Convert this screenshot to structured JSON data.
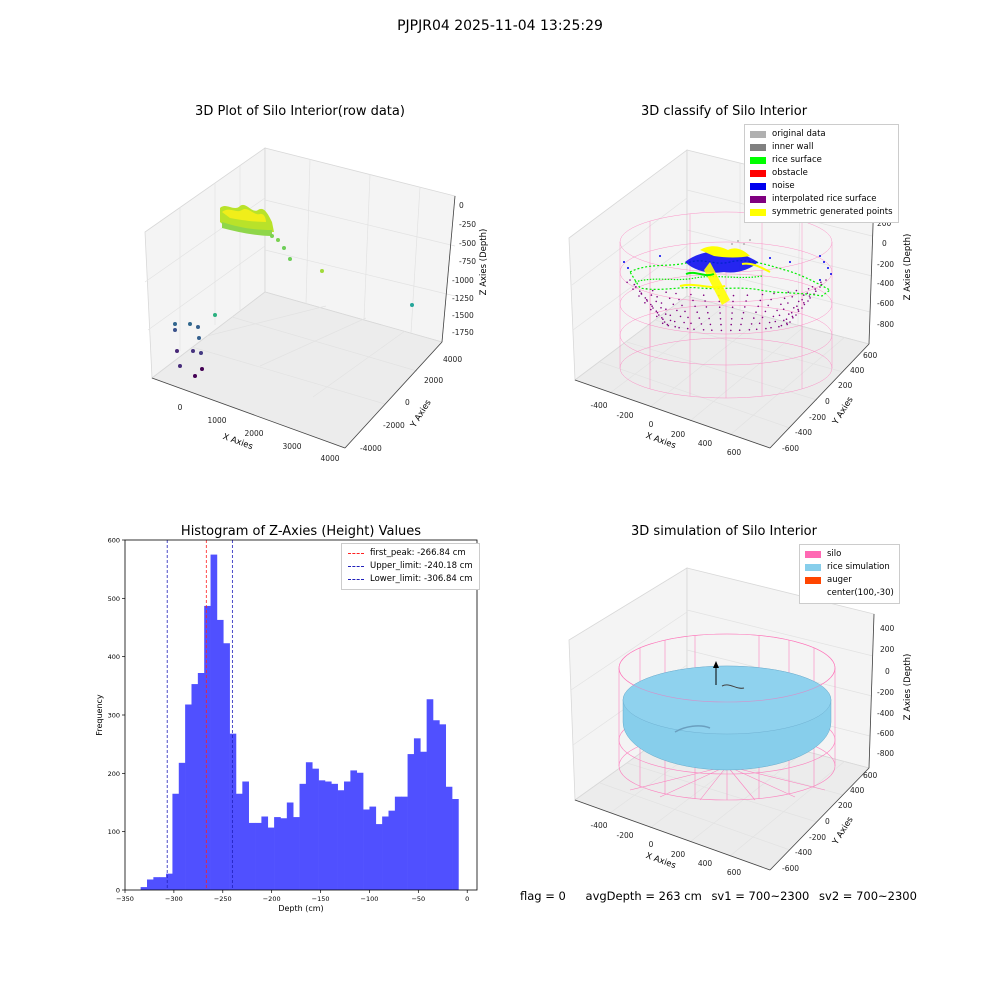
{
  "suptitle": "PJPJR04 2025-11-04 13:25:29",
  "colors": {
    "hist_bar": "#5050ff",
    "first_peak": "#ff2020",
    "limits": "#2020bb",
    "silo": "#ff69b4",
    "rice_simulation": "#87ceeb",
    "auger": "#ff4500"
  },
  "plot1": {
    "title": "3D Plot of Silo Interior(row data)",
    "xlabel": "X Axies",
    "ylabel": "Y Axies",
    "zlabel": "Z Axies (Depth)",
    "x_ticks": [
      "0",
      "1000",
      "2000",
      "3000",
      "4000"
    ],
    "y_ticks": [
      "-4000",
      "-2000",
      "0",
      "2000",
      "4000"
    ],
    "z_ticks": [
      "0",
      "-250",
      "-500",
      "-750",
      "-1000",
      "-1250",
      "-1500",
      "-1750"
    ]
  },
  "plot2": {
    "title": "3D classify of Silo Interior",
    "xlabel": "X Axies",
    "ylabel": "Y Axies",
    "zlabel": "Z Axies (Depth)",
    "x_ticks": [
      "-400",
      "-200",
      "0",
      "200",
      "400",
      "600"
    ],
    "y_ticks": [
      "-600",
      "-400",
      "-200",
      "0",
      "200",
      "400",
      "600"
    ],
    "z_ticks": [
      "200",
      "0",
      "-200",
      "-400",
      "-600",
      "-800"
    ],
    "legend": [
      {
        "label": "original data",
        "color": "#b0b0b0"
      },
      {
        "label": "inner wall",
        "color": "#808080"
      },
      {
        "label": "rice surface",
        "color": "#00ff00"
      },
      {
        "label": "obstacle",
        "color": "#ff0000"
      },
      {
        "label": "noise",
        "color": "#0000ee"
      },
      {
        "label": "interpolated rice surface",
        "color": "#800080"
      },
      {
        "label": "symmetric generated points",
        "color": "#ffff00"
      }
    ]
  },
  "plot3": {
    "title": "Histogram of Z-Axies (Height) Values",
    "xlabel": "Depth (cm)",
    "ylabel": "Frequency",
    "legend": [
      {
        "label": "first_peak: -266.84 cm",
        "color": "#ff2020"
      },
      {
        "label": "Upper_limit: -240.18 cm",
        "color": "#2020bb"
      },
      {
        "label": "Lower_limit: -306.84 cm",
        "color": "#2020bb"
      }
    ]
  },
  "plot4": {
    "title": "3D simulation of Silo Interior",
    "xlabel": "X Axies",
    "ylabel": "Y Axies",
    "zlabel": "Z Axies (Depth)",
    "x_ticks": [
      "-400",
      "-200",
      "0",
      "200",
      "400",
      "600"
    ],
    "y_ticks": [
      "-600",
      "-400",
      "-200",
      "0",
      "200",
      "400",
      "600"
    ],
    "z_ticks": [
      "400",
      "200",
      "0",
      "-200",
      "-400",
      "-600",
      "-800"
    ],
    "legend": [
      {
        "label": "silo",
        "color": "#ff69b4"
      },
      {
        "label": "rice simulation",
        "color": "#87ceeb"
      },
      {
        "label": "auger",
        "color": "#ff4500"
      },
      {
        "label": "center(100,-30)",
        "color": ""
      }
    ]
  },
  "footer": {
    "flag": "flag = 0",
    "avg": "avgDepth = 263 cm",
    "sv1": "sv1 = 700~2300",
    "sv2": "sv2 = 700~2300"
  },
  "chart_data": [
    {
      "type": "scatter",
      "title": "3D Plot of Silo Interior(row data)",
      "xlabel": "X Axies",
      "ylabel": "Y Axies",
      "zlabel": "Z Axies (Depth)",
      "xlim": [
        -500,
        4000
      ],
      "ylim": [
        -4500,
        4500
      ],
      "zlim": [
        -1850,
        100
      ]
    },
    {
      "type": "scatter",
      "title": "3D classify of Silo Interior",
      "xlabel": "X Axies",
      "ylabel": "Y Axies",
      "zlabel": "Z Axies (Depth)",
      "xlim": [
        -500,
        700
      ],
      "ylim": [
        -700,
        700
      ],
      "zlim": [
        -900,
        250
      ]
    },
    {
      "type": "bar",
      "title": "Histogram of Z-Axies (Height) Values",
      "xlabel": "Depth (cm)",
      "ylabel": "Frequency",
      "xlim": [
        -350,
        10
      ],
      "ylim": [
        0,
        600
      ],
      "x_ticks": [
        -350,
        -300,
        -250,
        -200,
        -150,
        -100,
        -50,
        0
      ],
      "y_ticks": [
        0,
        100,
        200,
        300,
        400,
        500,
        600
      ],
      "bin_start": -334,
      "bin_width": 6.5,
      "values": [
        5,
        18,
        22,
        22,
        28,
        165,
        218,
        318,
        353,
        372,
        487,
        575,
        463,
        423,
        268,
        165,
        186,
        115,
        115,
        126,
        107,
        125,
        123,
        150,
        125,
        182,
        219,
        208,
        188,
        186,
        182,
        171,
        186,
        205,
        201,
        138,
        143,
        113,
        126,
        136,
        160,
        160,
        233,
        260,
        237,
        327,
        291,
        284,
        177,
        156
      ],
      "vlines": [
        {
          "name": "first_peak: -266.84 cm",
          "x": -266.84
        },
        {
          "name": "Upper_limit: -240.18 cm",
          "x": -240.18
        },
        {
          "name": "Lower_limit: -306.84 cm",
          "x": -306.84
        }
      ]
    },
    {
      "type": "scatter",
      "title": "3D simulation of Silo Interior",
      "xlabel": "X Axies",
      "ylabel": "Y Axies",
      "zlabel": "Z Axies (Depth)",
      "xlim": [
        -500,
        700
      ],
      "ylim": [
        -700,
        700
      ],
      "zlim": [
        -900,
        450
      ]
    }
  ]
}
